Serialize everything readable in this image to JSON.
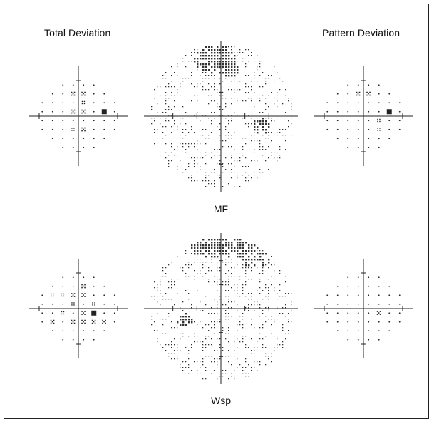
{
  "labels": {
    "total_deviation": "Total Deviation",
    "pattern_deviation": "Pattern Deviation"
  },
  "panels": [
    {
      "caption": "MF",
      "greyscale": {
        "dark_regions": [
          "superior-center",
          "right-center-below-axis"
        ],
        "light_regions": [
          "left-midline"
        ]
      },
      "total_deviation": {
        "black": [
          [
            2,
            1
          ]
        ],
        "strong": [
          [
            -1,
            3
          ],
          [
            0,
            3
          ],
          [
            -1,
            1
          ],
          [
            0,
            1
          ],
          [
            0,
            -1
          ]
        ],
        "moderate": [
          [
            0,
            2
          ],
          [
            -1,
            -1
          ]
        ]
      },
      "pattern_deviation": {
        "black": [
          [
            2,
            1
          ]
        ],
        "strong": [
          [
            -1,
            3
          ],
          [
            0,
            3
          ]
        ],
        "moderate": [
          [
            1,
            0
          ],
          [
            1,
            -1
          ]
        ]
      }
    },
    {
      "caption": "Wsp",
      "greyscale": {
        "dark_regions": [
          "superior-center-band",
          "left-center-below-axis"
        ],
        "light_regions": []
      },
      "total_deviation": {
        "black": [
          [
            1,
            0
          ]
        ],
        "strong": [
          [
            0,
            3
          ],
          [
            -1,
            2
          ],
          [
            0,
            2
          ],
          [
            0,
            0
          ],
          [
            -3,
            -1
          ],
          [
            -1,
            -1
          ],
          [
            0,
            -1
          ],
          [
            1,
            -1
          ],
          [
            2,
            -1
          ]
        ],
        "moderate": [
          [
            -3,
            2
          ],
          [
            -2,
            2
          ],
          [
            -1,
            1
          ],
          [
            1,
            1
          ],
          [
            -2,
            0
          ]
        ]
      },
      "pattern_deviation": {
        "black": [],
        "strong": [
          [
            1,
            0
          ]
        ],
        "moderate": []
      }
    }
  ],
  "colors": {
    "ink": "#222222",
    "frame": "#222222",
    "background": "#ffffff"
  }
}
